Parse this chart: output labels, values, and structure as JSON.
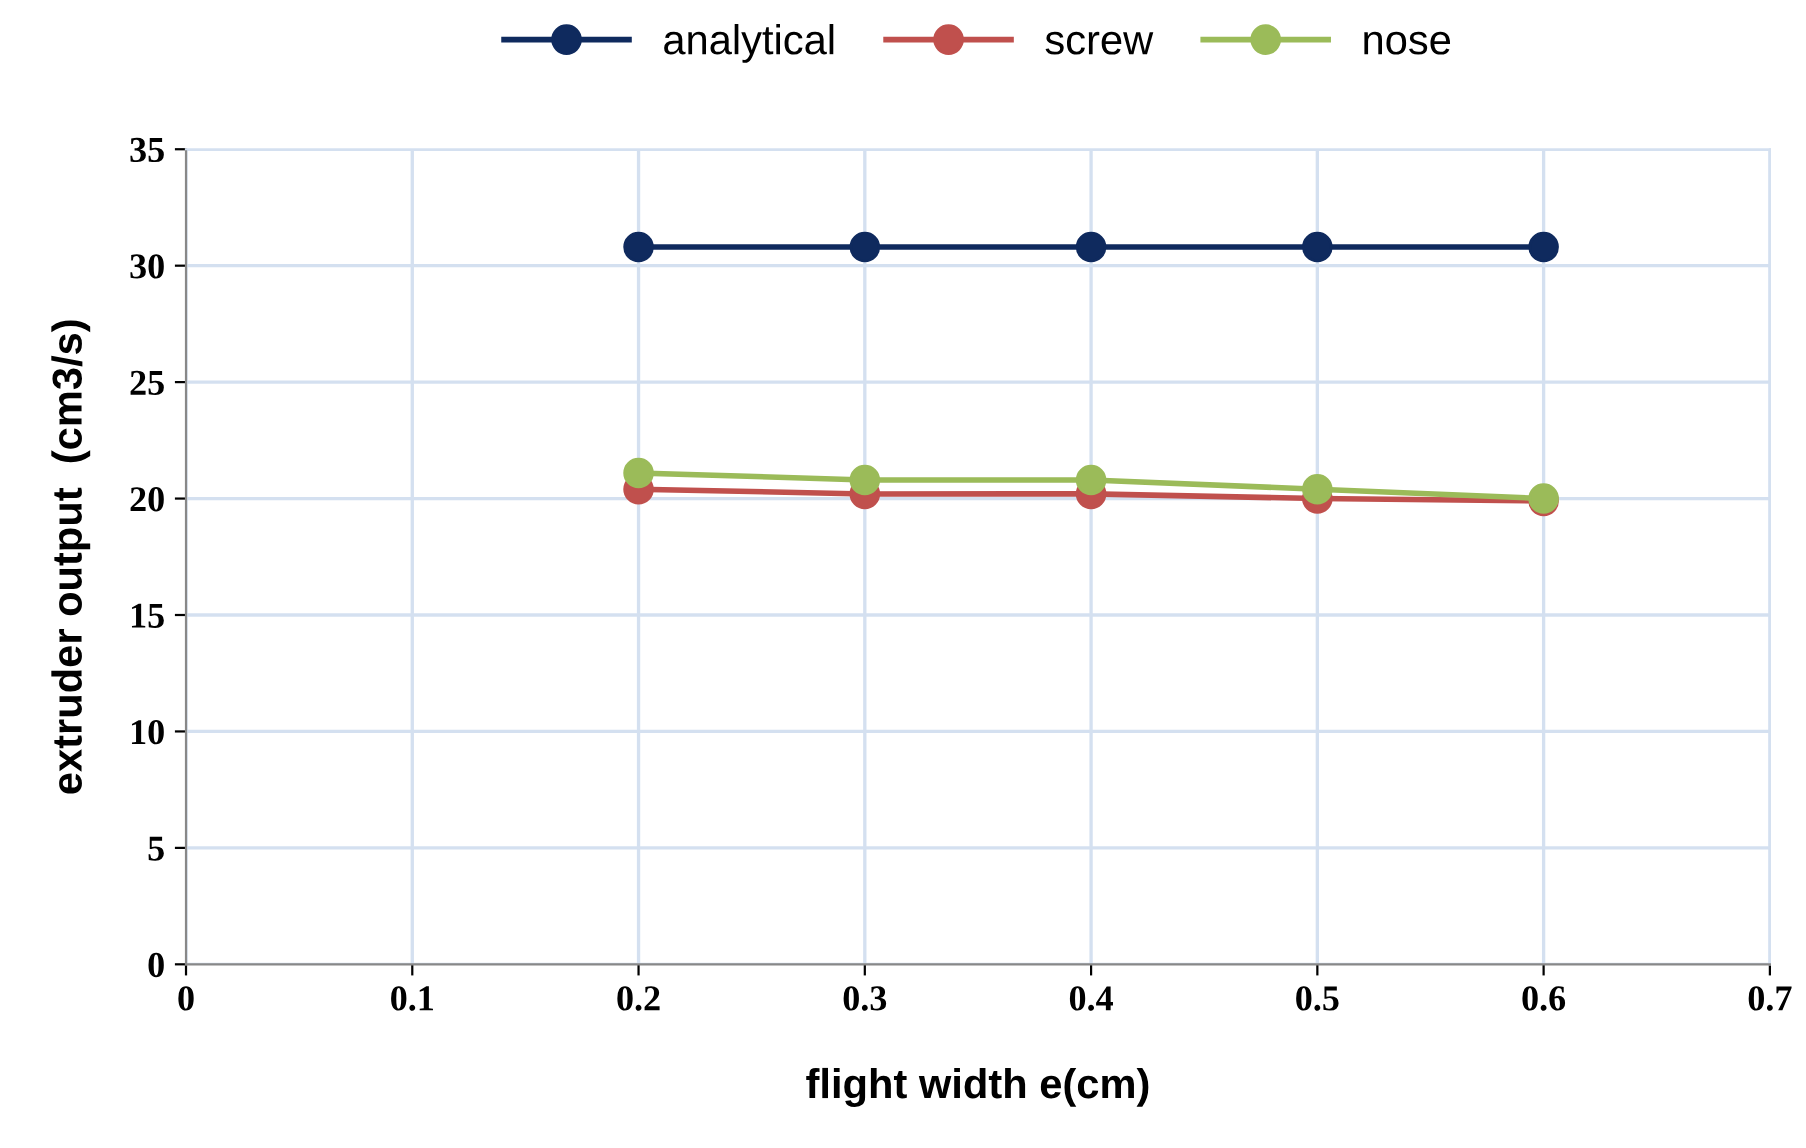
{
  "chart_data": {
    "type": "line",
    "xlabel": "flight width e(cm)",
    "ylabel": "extruder output  (cm3/s)",
    "x": [
      0.2,
      0.3,
      0.4,
      0.5,
      0.6
    ],
    "series": [
      {
        "name": "analytical",
        "color": "#0f2a5e",
        "values": [
          30.8,
          30.8,
          30.8,
          30.8,
          30.8
        ]
      },
      {
        "name": "screw",
        "color": "#c0504d",
        "values": [
          20.4,
          20.2,
          20.2,
          20.0,
          19.9
        ]
      },
      {
        "name": "nose",
        "color": "#9bbb59",
        "values": [
          21.1,
          20.8,
          20.8,
          20.4,
          20.0
        ]
      }
    ],
    "xlim": [
      0,
      0.7
    ],
    "xticks": [
      0,
      0.1,
      0.2,
      0.3,
      0.4,
      0.5,
      0.6,
      0.7
    ],
    "ylim": [
      0,
      35
    ],
    "yticks": [
      0,
      5,
      10,
      15,
      20,
      25,
      30,
      35
    ],
    "grid": true,
    "legend": "top",
    "marker": "circle",
    "line_style": "solid"
  }
}
